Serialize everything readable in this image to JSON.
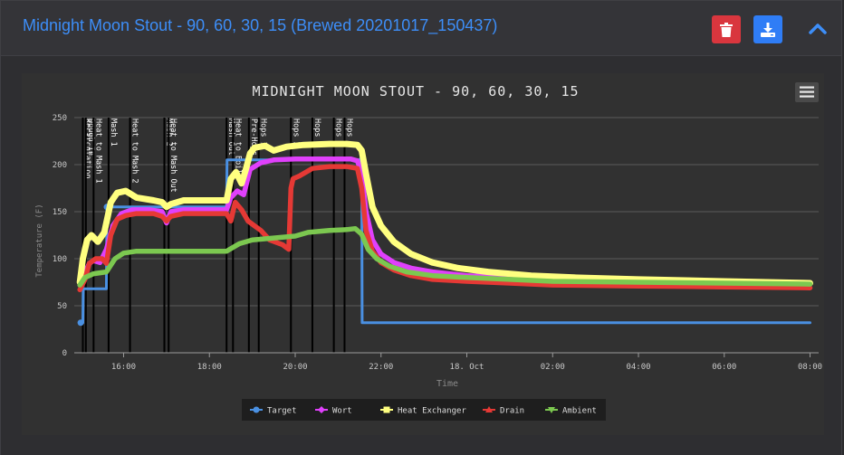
{
  "header": {
    "title": "Midnight Moon Stout - 90, 60, 30, 15 (Brewed 20201017_150437)",
    "delete_icon": "trash-icon",
    "download_icon": "download-icon",
    "collapse_icon": "chevron-up-icon"
  },
  "colors": {
    "title": "#3d8ef8",
    "target": "#4a90e2",
    "wort": "#e040fb",
    "heat_exchanger": "#ffff80",
    "drain": "#e53935",
    "ambient": "#7cc850"
  },
  "menu_icon": "hamburger-menu-icon",
  "chart_data": {
    "type": "line",
    "title": "MIDNIGHT MOON STOUT - 90, 60, 30, 15",
    "xlabel": "Time",
    "ylabel": "Temperature (F)",
    "ylim": [
      0,
      250
    ],
    "yticks": [
      0,
      50,
      100,
      150,
      200,
      250
    ],
    "xlim": [
      14.85,
      32.2
    ],
    "xticks": [
      {
        "value": 16,
        "label": "16:00"
      },
      {
        "value": 18,
        "label": "18:00"
      },
      {
        "value": 20,
        "label": "20:00"
      },
      {
        "value": 22,
        "label": "22:00"
      },
      {
        "value": 24,
        "label": "18. Oct"
      },
      {
        "value": 26,
        "label": "02:00"
      },
      {
        "value": 28,
        "label": "04:00"
      },
      {
        "value": 30,
        "label": "06:00"
      },
      {
        "value": 32,
        "label": "08:00"
      }
    ],
    "grid": true,
    "legend_position": "bottom",
    "events": [
      {
        "x": 15.05,
        "label": "Recirculation"
      },
      {
        "x": 15.12,
        "label": "Dough In"
      },
      {
        "x": 15.3,
        "label": "Heat to Mash 1"
      },
      {
        "x": 15.65,
        "label": "Mash 1"
      },
      {
        "x": 16.15,
        "label": "Heat to Mash 2"
      },
      {
        "x": 16.95,
        "label": "Mash 2"
      },
      {
        "x": 17.05,
        "label": "Heat to Mash Out"
      },
      {
        "x": 18.4,
        "label": "Mash Out"
      },
      {
        "x": 18.55,
        "label": "Heat to Boil"
      },
      {
        "x": 18.92,
        "label": "Pre-Hops"
      },
      {
        "x": 19.15,
        "label": "Hops 1"
      },
      {
        "x": 19.9,
        "label": "Hops 2"
      },
      {
        "x": 20.4,
        "label": "Hops 3"
      },
      {
        "x": 20.9,
        "label": "Hops 4"
      },
      {
        "x": 21.15,
        "label": "Hops 5"
      }
    ],
    "series": [
      {
        "name": "Target",
        "color": "#4a90e2",
        "marker": "circle",
        "x": [
          15.0,
          15.05,
          15.06,
          15.6,
          15.61,
          18.4,
          18.41,
          21.55,
          21.56,
          32.0
        ],
        "y": [
          32,
          32,
          68,
          68,
          155,
          155,
          205,
          205,
          32,
          32
        ]
      },
      {
        "name": "Wort",
        "color": "#e040fb",
        "marker": "diamond",
        "x": [
          14.98,
          15.1,
          15.2,
          15.3,
          15.45,
          15.6,
          15.75,
          15.95,
          16.2,
          16.6,
          16.9,
          17.0,
          17.1,
          17.4,
          18.0,
          18.4,
          18.5,
          18.65,
          18.8,
          18.95,
          19.2,
          19.5,
          20.0,
          20.5,
          21.0,
          21.3,
          21.45,
          21.55,
          21.65,
          21.8,
          22.0,
          22.3,
          22.7,
          23.2,
          24.0,
          25.0,
          26.0,
          28.0,
          30.0,
          31.0,
          32.0
        ],
        "y": [
          72,
          85,
          95,
          98,
          96,
          110,
          135,
          148,
          152,
          152,
          150,
          138,
          150,
          152,
          152,
          152,
          165,
          172,
          168,
          195,
          202,
          205,
          206,
          206,
          206,
          206,
          204,
          190,
          150,
          120,
          105,
          96,
          90,
          86,
          82,
          80,
          78,
          77,
          76,
          75,
          74
        ]
      },
      {
        "name": "Heat Exchanger",
        "color": "#ffff80",
        "marker": "square",
        "x": [
          14.98,
          15.05,
          15.15,
          15.25,
          15.4,
          15.55,
          15.7,
          15.85,
          16.05,
          16.3,
          16.7,
          16.9,
          17.0,
          17.1,
          17.4,
          18.0,
          18.4,
          18.5,
          18.62,
          18.75,
          18.85,
          18.95,
          19.05,
          19.3,
          19.5,
          19.8,
          20.2,
          20.8,
          21.2,
          21.45,
          21.55,
          21.65,
          21.8,
          22.0,
          22.3,
          22.7,
          23.2,
          23.8,
          24.5,
          25.5,
          26.5,
          28.0,
          30.0,
          32.0
        ],
        "y": [
          75,
          100,
          120,
          125,
          118,
          128,
          160,
          170,
          172,
          165,
          162,
          160,
          155,
          158,
          162,
          162,
          162,
          185,
          192,
          180,
          195,
          212,
          218,
          220,
          215,
          219,
          221,
          222,
          222,
          221,
          215,
          190,
          155,
          135,
          118,
          105,
          96,
          90,
          86,
          82,
          80,
          78,
          76,
          74
        ]
      },
      {
        "name": "Drain",
        "color": "#e53935",
        "marker": "triangle",
        "x": [
          14.98,
          15.1,
          15.2,
          15.35,
          15.5,
          15.6,
          15.7,
          15.85,
          16.05,
          16.3,
          16.7,
          16.9,
          17.0,
          17.1,
          17.4,
          18.0,
          18.4,
          18.5,
          18.6,
          18.75,
          18.9,
          19.05,
          19.2,
          19.4,
          19.7,
          19.85,
          19.9,
          19.95,
          20.1,
          20.4,
          20.8,
          21.2,
          21.45,
          21.55,
          21.65,
          21.8,
          22.0,
          22.3,
          22.7,
          23.2,
          24.0,
          25.0,
          26.0,
          28.0,
          30.0,
          32.0
        ],
        "y": [
          67,
          78,
          95,
          100,
          100,
          95,
          125,
          142,
          146,
          148,
          148,
          145,
          140,
          145,
          148,
          148,
          148,
          140,
          160,
          152,
          140,
          135,
          130,
          120,
          115,
          110,
          175,
          185,
          188,
          196,
          198,
          198,
          196,
          175,
          130,
          108,
          96,
          88,
          82,
          78,
          76,
          74,
          72,
          71,
          70,
          69
        ]
      },
      {
        "name": "Ambient",
        "color": "#7cc850",
        "marker": "triangle-down",
        "x": [
          14.98,
          15.1,
          15.3,
          15.6,
          15.8,
          16.0,
          16.3,
          16.8,
          17.4,
          18.0,
          18.4,
          18.55,
          18.7,
          19.0,
          19.5,
          20.0,
          20.3,
          20.8,
          21.2,
          21.4,
          21.55,
          21.7,
          21.9,
          22.2,
          22.6,
          23.2,
          24.0,
          25.0,
          26.0,
          28.0,
          30.0,
          32.0
        ],
        "y": [
          72,
          80,
          84,
          86,
          100,
          106,
          108,
          108,
          108,
          108,
          108,
          112,
          116,
          120,
          122,
          124,
          128,
          130,
          131,
          132,
          126,
          110,
          100,
          92,
          86,
          82,
          80,
          78,
          76,
          75,
          74,
          73
        ]
      }
    ]
  }
}
